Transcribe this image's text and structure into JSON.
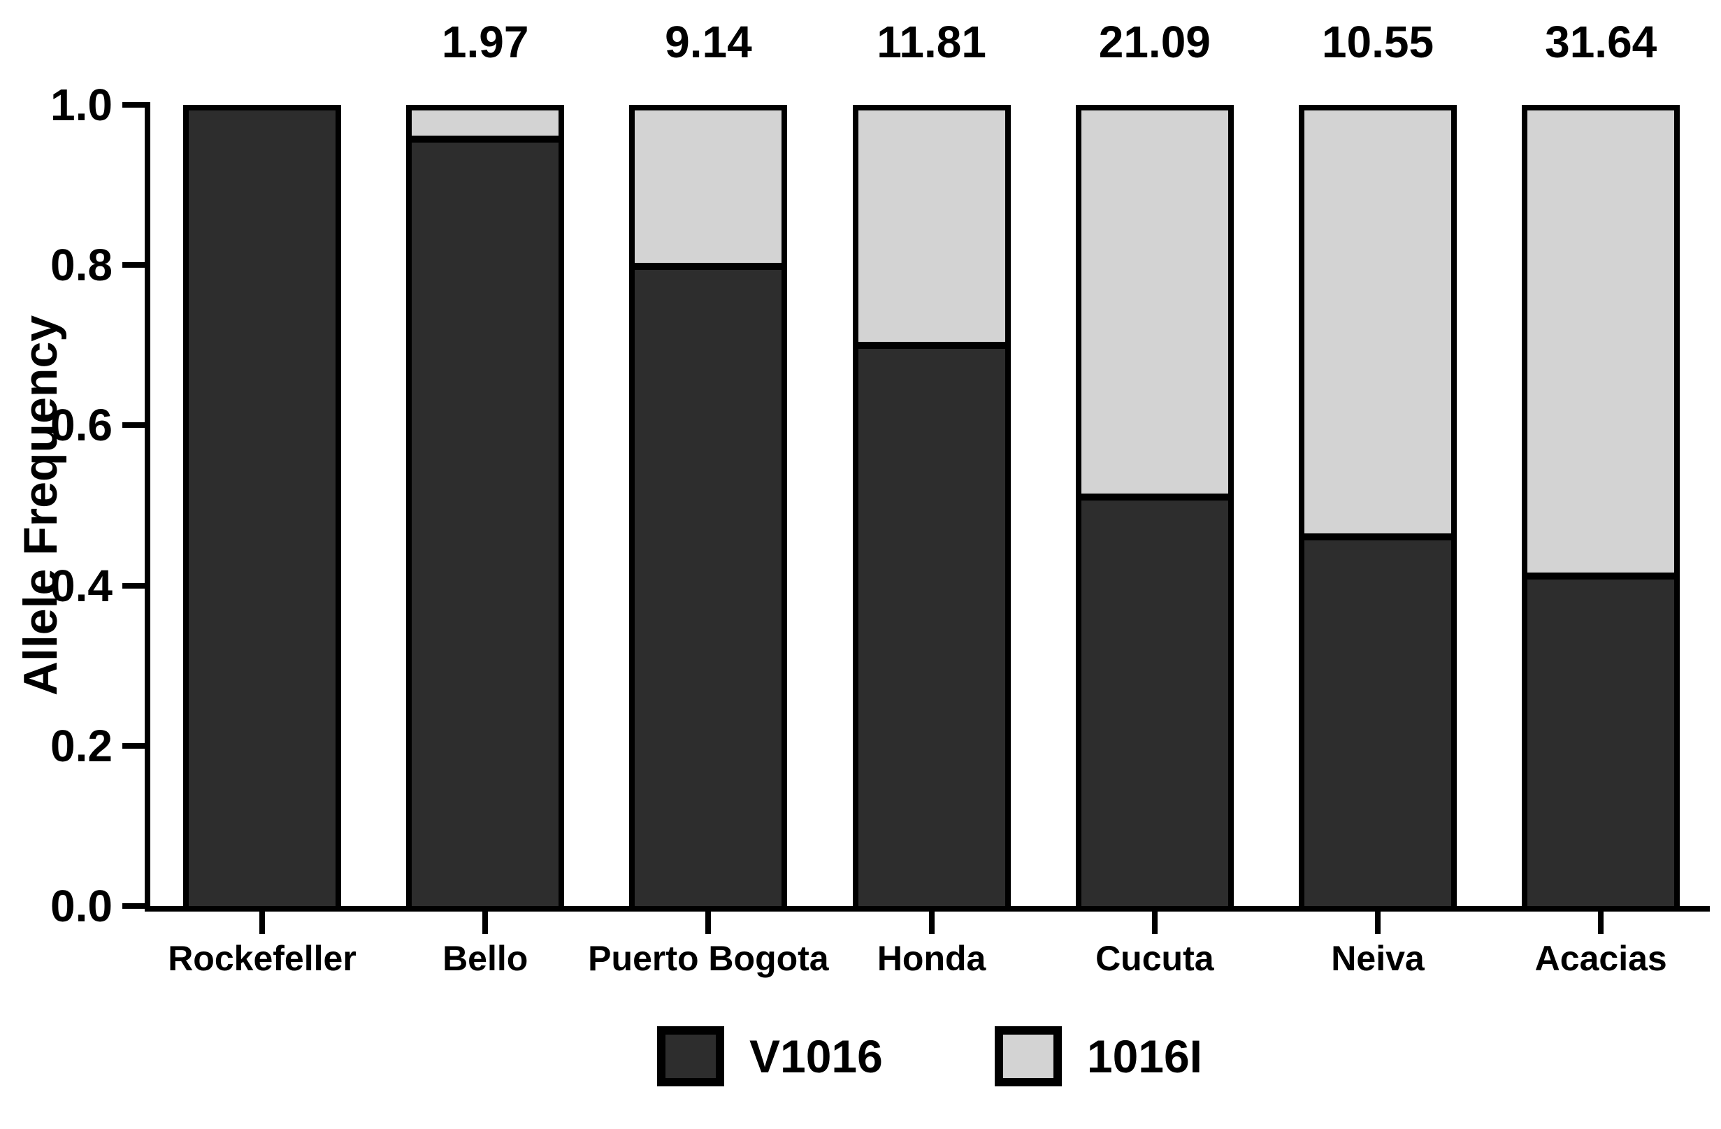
{
  "figure": {
    "background": "#ffffff",
    "axis_color": "#000000"
  },
  "chart_data": {
    "type": "bar",
    "stacked": true,
    "title": "",
    "xlabel": "",
    "ylabel": "Allele Frequency",
    "ylim": [
      0.0,
      1.0
    ],
    "grid": false,
    "categories": [
      "Rockefeller",
      "Bello",
      "Puerto Bogota",
      "Honda",
      "Cucuta",
      "Neiva",
      "Acacias"
    ],
    "series": [
      {
        "name": "V1016",
        "color": "#2d2d2d",
        "values": [
          1.0,
          0.96,
          0.8,
          0.7,
          0.51,
          0.46,
          0.41
        ]
      },
      {
        "name": "1016I",
        "color": "#d3d3d3",
        "values": [
          0.0,
          0.04,
          0.2,
          0.3,
          0.49,
          0.54,
          0.59
        ]
      }
    ],
    "bar_annotations": [
      "",
      "1.97",
      "9.14",
      "11.81",
      "21.09",
      "10.55",
      "31.64"
    ],
    "yticks": [
      {
        "value": 0.0,
        "label": "0.0"
      },
      {
        "value": 0.2,
        "label": "0.2"
      },
      {
        "value": 0.4,
        "label": "0.4"
      },
      {
        "value": 0.6,
        "label": "0.6"
      },
      {
        "value": 0.8,
        "label": "0.8"
      },
      {
        "value": 1.0,
        "label": "1.0"
      }
    ],
    "legend": {
      "position": "bottom",
      "entries": [
        {
          "label": "V1016",
          "color": "#2d2d2d"
        },
        {
          "label": "1016I",
          "color": "#d3d3d3"
        }
      ]
    }
  }
}
